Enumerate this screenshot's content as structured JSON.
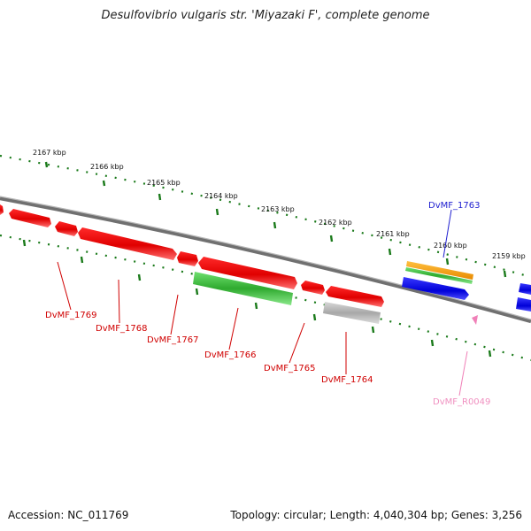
{
  "title": "Desulfovibrio vulgaris str. 'Miyazaki F', complete genome",
  "footer": {
    "accession": "Accession: NC_011769",
    "stats": "Topology: circular; Length: 4,040,304 bp; Genes: 3,256"
  },
  "ticks": [
    {
      "label": "2167 kbp"
    },
    {
      "label": "2166 kbp"
    },
    {
      "label": "2165 kbp"
    },
    {
      "label": "2164 kbp"
    },
    {
      "label": "2163 kbp"
    },
    {
      "label": "2162 kbp"
    },
    {
      "label": "2161 kbp"
    },
    {
      "label": "2160 kbp"
    },
    {
      "label": "2159 kbp"
    }
  ],
  "genes": [
    {
      "label": "DvMF_1769"
    },
    {
      "label": "DvMF_1768"
    },
    {
      "label": "DvMF_1767"
    },
    {
      "label": "DvMF_1766"
    },
    {
      "label": "DvMF_1765"
    },
    {
      "label": "DvMF_1764"
    },
    {
      "label": "DvMF_1763"
    },
    {
      "label": "DvMF_R0049"
    }
  ],
  "colors": {
    "cds": "#e80000",
    "gene_green": "#3cbf3c",
    "gene_gray": "#b0b0b0",
    "orange": "#f49b00",
    "blue": "#0a0ae6",
    "rna": "#f080b8",
    "tick": "#1a7a1a",
    "backbone": "#7a7a7a"
  }
}
